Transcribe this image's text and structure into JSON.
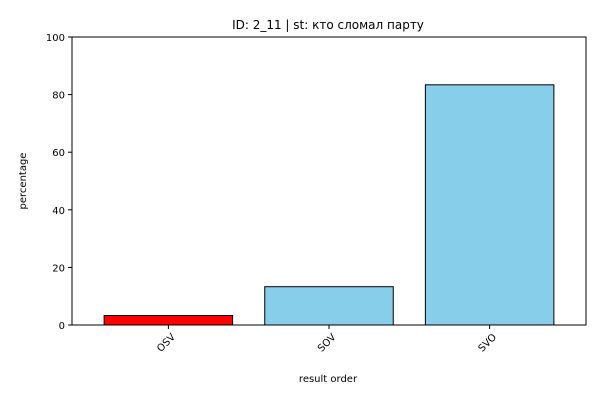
{
  "chart_data": {
    "type": "bar",
    "title": "ID: 2_11 | st: кто сломал парту",
    "xlabel": "result order",
    "ylabel": "percentage",
    "categories": [
      "OSV",
      "SOV",
      "SVO"
    ],
    "values": [
      3.3,
      13.3,
      83.4
    ],
    "bar_colors": [
      "#ff0000",
      "#87ceeb",
      "#87ceeb"
    ],
    "edge_color": "#000000",
    "ylim": [
      0,
      100
    ],
    "yticks": [
      0,
      20,
      40,
      60,
      80,
      100
    ],
    "xtick_rotation": 45,
    "grid": false,
    "legend": "none"
  }
}
